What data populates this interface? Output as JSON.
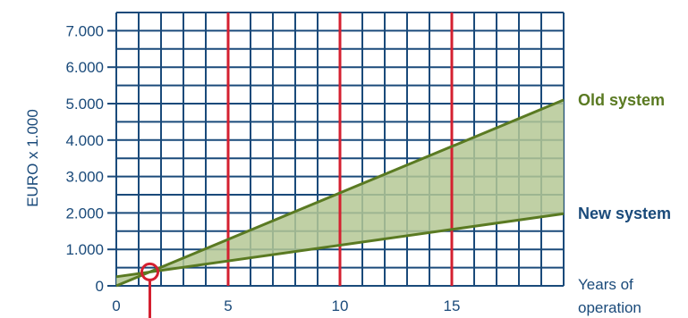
{
  "chart_data": {
    "type": "line",
    "ylabel": "EURO x 1.000",
    "xlabel_lines": [
      "Years of",
      "operation"
    ],
    "xlim": [
      0,
      20
    ],
    "ylim": [
      0,
      7500
    ],
    "x_ticks": [
      0,
      5,
      10,
      15
    ],
    "x_tick_labels": [
      "0",
      "5",
      "10",
      "15"
    ],
    "y_ticks": [
      0,
      1000,
      2000,
      3000,
      4000,
      5000,
      6000,
      7000
    ],
    "y_tick_labels": [
      "0",
      "1.000",
      "2.000",
      "3.000",
      "4.000",
      "5.000",
      "6.000",
      "7.000"
    ],
    "grid": true,
    "highlight_x": [
      5,
      10,
      15
    ],
    "break_even_x": 1.5,
    "shade_between_series": true,
    "series": [
      {
        "name": "Old system",
        "x": [
          0,
          20
        ],
        "y": [
          0,
          5100
        ],
        "color": "#5a7a22"
      },
      {
        "name": "New system",
        "x": [
          0,
          20
        ],
        "y": [
          250,
          1980
        ],
        "color": "#5a7a22"
      }
    ],
    "series_label_colors": [
      "#5a7a22",
      "#1a4a7a"
    ]
  },
  "colors": {
    "grid": "#1a4a7a",
    "highlight": "#d42030",
    "fill": "#b5c895",
    "axis_text": "#1a4a7a"
  }
}
